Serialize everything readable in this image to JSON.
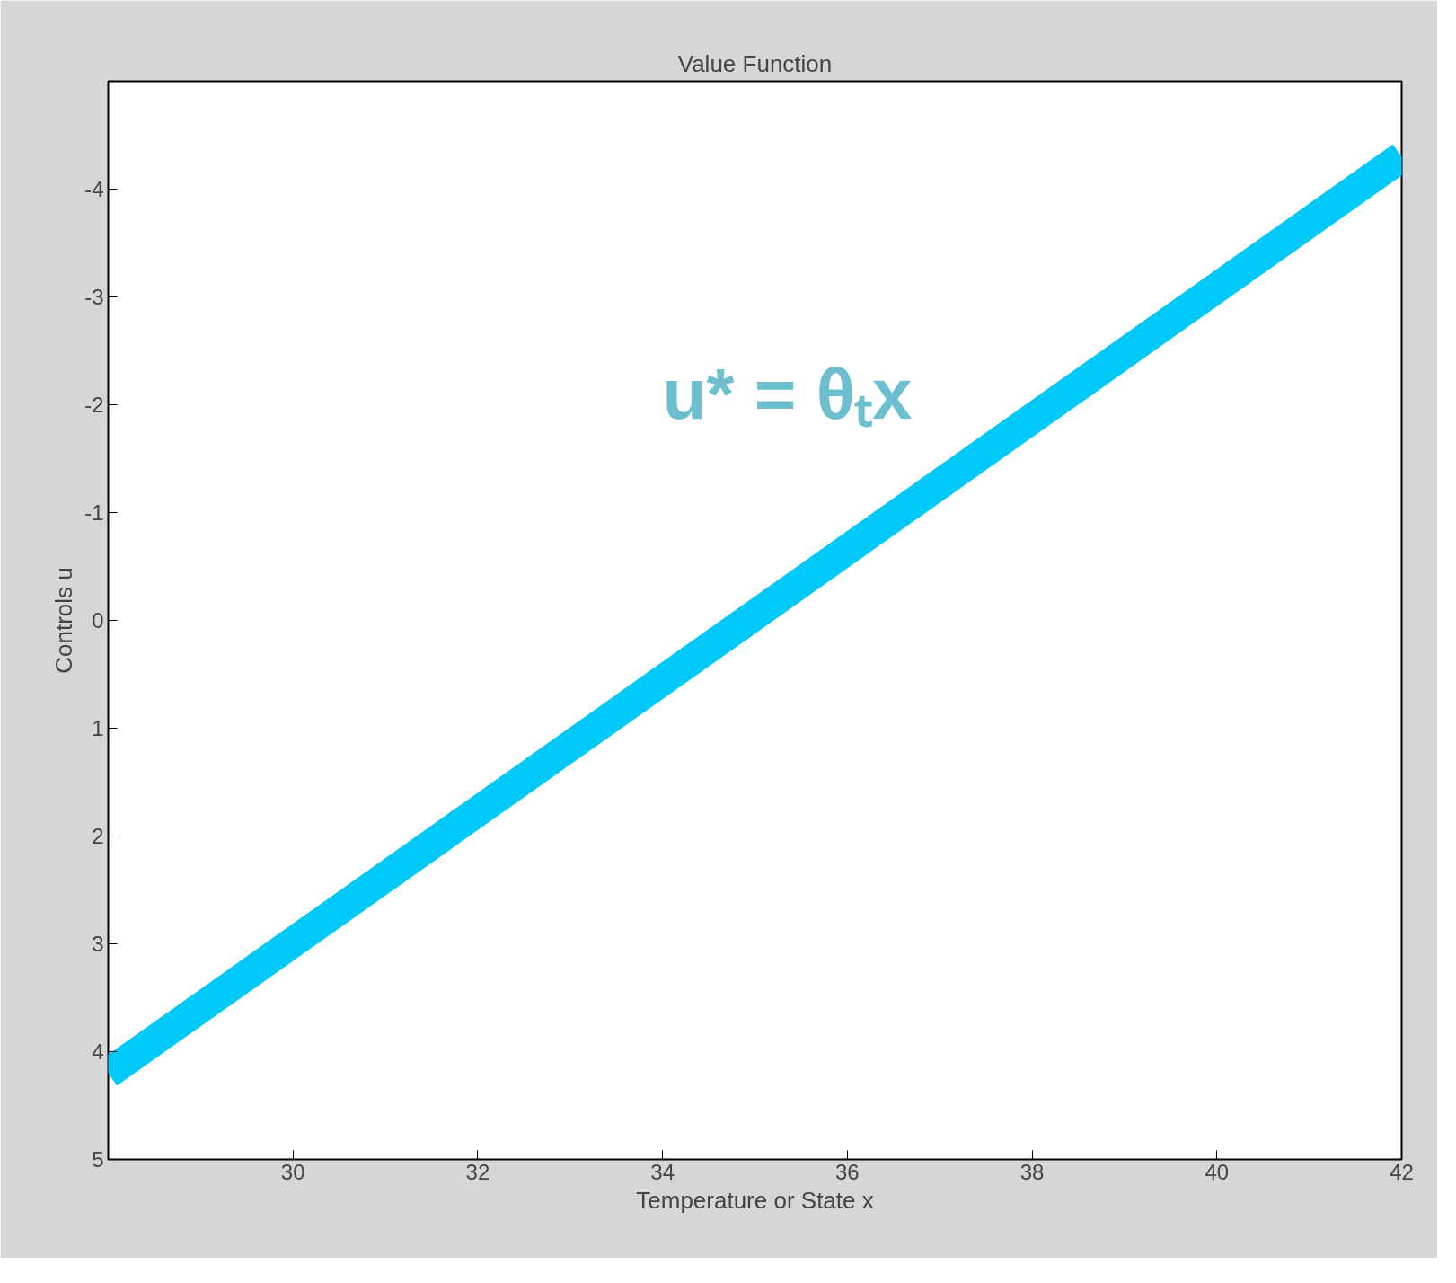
{
  "chart_data": {
    "type": "line",
    "title": "Value Function",
    "xlabel": "Temperature or State x",
    "ylabel": "Controls u",
    "x": [
      28,
      42
    ],
    "series": [
      {
        "color": "#00c8f8",
        "values": [
          4.2,
          -4.3
        ]
      }
    ],
    "xlim": [
      28,
      42
    ],
    "ylim": [
      5,
      -5
    ],
    "xticks": [
      30,
      32,
      34,
      36,
      38,
      40,
      42
    ],
    "yticks": [
      -4,
      -3,
      -2,
      -1,
      0,
      1,
      2,
      3,
      4,
      5
    ],
    "annotations": [
      "u* = θₜx"
    ],
    "grid": false
  }
}
